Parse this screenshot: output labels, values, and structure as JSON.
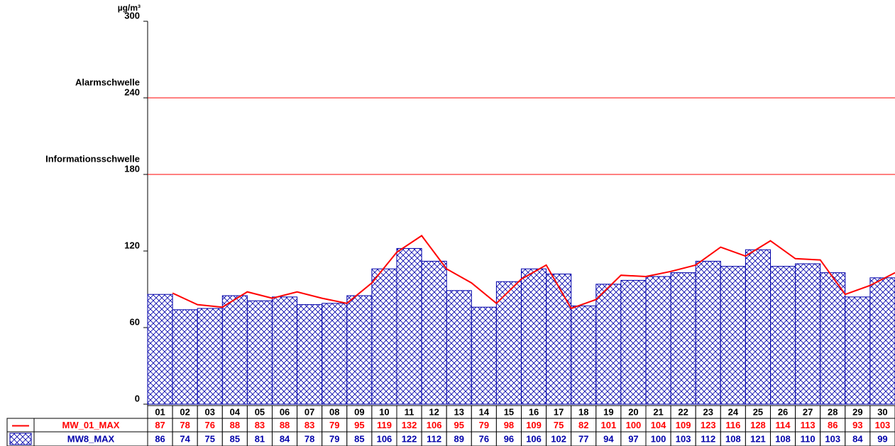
{
  "chart_data": {
    "type": "bar",
    "y_label": "µg/m³",
    "ylim": [
      0,
      300
    ],
    "yticks": [
      0,
      60,
      120,
      180,
      240,
      300
    ],
    "thresholds": [
      {
        "label": "Informationsschwelle",
        "value": 180,
        "color": "#ff0000"
      },
      {
        "label": "Alarmschwelle",
        "value": 240,
        "color": "#ff0000"
      }
    ],
    "categories": [
      "01",
      "02",
      "03",
      "04",
      "05",
      "06",
      "07",
      "08",
      "09",
      "10",
      "11",
      "12",
      "13",
      "14",
      "15",
      "16",
      "17",
      "18",
      "19",
      "20",
      "21",
      "22",
      "23",
      "24",
      "25",
      "26",
      "27",
      "28",
      "29",
      "30"
    ],
    "series": [
      {
        "name": "MW_01_MAX",
        "type": "line",
        "color": "#ff0000",
        "values": [
          87,
          78,
          76,
          88,
          83,
          88,
          83,
          79,
          95,
          119,
          132,
          106,
          95,
          79,
          98,
          109,
          75,
          82,
          101,
          100,
          104,
          109,
          123,
          116,
          128,
          114,
          113,
          86,
          93,
          103
        ]
      },
      {
        "name": "MW8_MAX",
        "type": "bar",
        "color": "#0000aa",
        "values": [
          86,
          74,
          75,
          85,
          81,
          84,
          78,
          79,
          85,
          106,
          122,
          112,
          89,
          76,
          96,
          106,
          102,
          77,
          94,
          97,
          100,
          103,
          112,
          108,
          121,
          108,
          110,
          103,
          84,
          99
        ]
      }
    ]
  }
}
